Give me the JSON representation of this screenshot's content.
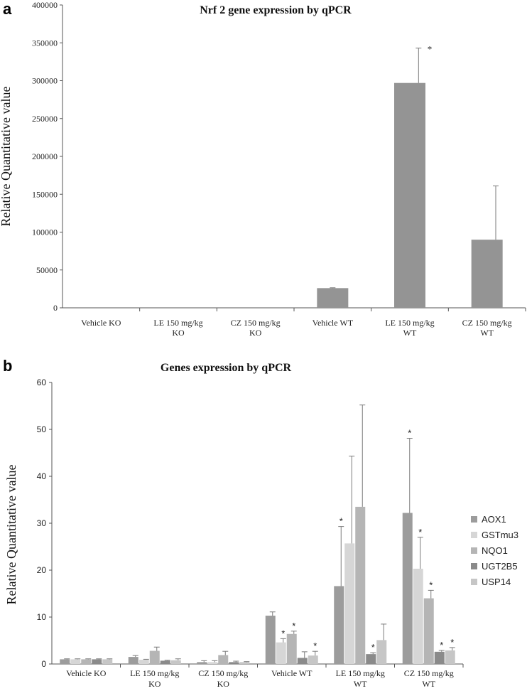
{
  "colors": {
    "panel_a_bar": "#949494",
    "AOX1": "#9c9c9c",
    "GSTmu3": "#d6d6d6",
    "NQO1": "#b5b5b5",
    "UGT2B5": "#8a8a8a",
    "USP14": "#c6c6c6"
  },
  "chart_data": [
    {
      "panel_label": "a",
      "type": "bar",
      "title": "Nrf 2 gene expression by qPCR",
      "ylabel": "Relative Quantitative value",
      "xlabel": "",
      "ylim": [
        0,
        400000
      ],
      "yticks": [
        0,
        50000,
        100000,
        150000,
        200000,
        250000,
        300000,
        350000,
        400000
      ],
      "categories": [
        [
          "Vehicle KO"
        ],
        [
          "LE 150 mg/kg",
          "KO"
        ],
        [
          "CZ 150 mg/kg",
          "KO"
        ],
        [
          "Vehicle WT"
        ],
        [
          "LE 150 mg/kg",
          "WT"
        ],
        [
          "CZ 150 mg/kg",
          "WT"
        ]
      ],
      "values": [
        0,
        0,
        0,
        26000,
        297000,
        90000
      ],
      "errors": [
        0,
        0,
        0,
        500,
        46000,
        71000
      ],
      "significance": [
        "",
        "",
        "",
        "",
        "*",
        ""
      ]
    },
    {
      "panel_label": "b",
      "type": "bar",
      "title": "Genes expression by qPCR",
      "ylabel": "Relative Quantitative value",
      "xlabel": "",
      "ylim": [
        0,
        60
      ],
      "yticks": [
        0,
        10,
        20,
        30,
        40,
        50,
        60
      ],
      "legend_position": "right",
      "categories": [
        [
          "Vehicle KO"
        ],
        [
          "LE 150 mg/kg",
          "KO"
        ],
        [
          "CZ 150 mg/kg",
          "KO"
        ],
        [
          "Vehicle WT"
        ],
        [
          "LE 150 mg/kg",
          "WT"
        ],
        [
          "CZ 150 mg/kg",
          "WT"
        ]
      ],
      "series": [
        {
          "name": "AOX1",
          "values": [
            1.0,
            1.5,
            0.4,
            10.3,
            16.6,
            32.2
          ],
          "errors": [
            0.1,
            0.3,
            0.3,
            0.8,
            12.7,
            15.9
          ],
          "significance": [
            "",
            "",
            "",
            "",
            "*",
            "*"
          ]
        },
        {
          "name": "GSTmu3",
          "values": [
            1.0,
            0.9,
            0.4,
            4.6,
            25.7,
            20.3
          ],
          "errors": [
            0.1,
            0.1,
            0.3,
            0.8,
            18.6,
            6.7
          ],
          "significance": [
            "",
            "",
            "",
            "*",
            "",
            "*"
          ]
        },
        {
          "name": "NQO1",
          "values": [
            1.0,
            2.8,
            1.9,
            6.4,
            33.5,
            14.0
          ],
          "errors": [
            0.1,
            0.8,
            0.8,
            0.6,
            21.7,
            1.7
          ],
          "significance": [
            "",
            "",
            "",
            "*",
            "",
            "*"
          ]
        },
        {
          "name": "UGT2B5",
          "values": [
            1.0,
            0.7,
            0.4,
            1.3,
            2.1,
            2.6
          ],
          "errors": [
            0.1,
            0.1,
            0.2,
            1.3,
            0.3,
            0.3
          ],
          "significance": [
            "",
            "",
            "",
            "",
            "*",
            "*"
          ]
        },
        {
          "name": "USP14",
          "values": [
            1.0,
            0.8,
            0.4,
            1.8,
            5.1,
            2.9
          ],
          "errors": [
            0.1,
            0.3,
            0.1,
            0.9,
            3.4,
            0.6
          ],
          "significance": [
            "",
            "",
            "",
            "*",
            "",
            "*"
          ]
        }
      ]
    }
  ]
}
